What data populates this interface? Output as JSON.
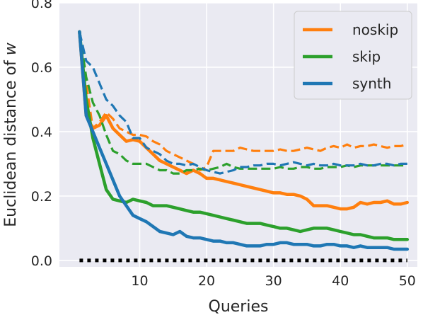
{
  "chart_data": {
    "type": "line",
    "xlabel": "Queries",
    "ylabel": "Euclidean distance of ",
    "ylabel_symbol": "w",
    "xlim": [
      -2,
      51.5
    ],
    "ylim": [
      -0.02,
      0.8
    ],
    "xticks": [
      10,
      20,
      30,
      40,
      50
    ],
    "yticks": [
      0.0,
      0.2,
      0.4,
      0.6,
      0.8
    ],
    "xtick_labels": [
      "10",
      "20",
      "30",
      "40",
      "50"
    ],
    "ytick_labels": [
      "0.0",
      "0.2",
      "0.4",
      "0.6",
      "0.8"
    ],
    "grid": true,
    "background": "#eaeaf2",
    "legend_position": "top-right",
    "x": [
      1,
      2,
      3,
      4,
      5,
      6,
      7,
      8,
      9,
      10,
      11,
      12,
      13,
      14,
      15,
      16,
      17,
      18,
      19,
      20,
      21,
      22,
      23,
      24,
      25,
      26,
      27,
      28,
      29,
      30,
      31,
      32,
      33,
      34,
      35,
      36,
      37,
      38,
      39,
      40,
      41,
      42,
      43,
      44,
      45,
      46,
      47,
      48,
      49,
      50
    ],
    "series": [
      {
        "name": "noskip",
        "color": "#ff7f0e",
        "style": "solid",
        "values": [
          0.71,
          0.45,
          0.41,
          0.42,
          0.45,
          0.41,
          0.39,
          0.37,
          0.375,
          0.37,
          0.35,
          0.33,
          0.31,
          0.3,
          0.29,
          0.28,
          0.27,
          0.28,
          0.27,
          0.255,
          0.255,
          0.25,
          0.245,
          0.24,
          0.235,
          0.23,
          0.225,
          0.22,
          0.215,
          0.21,
          0.21,
          0.205,
          0.205,
          0.2,
          0.19,
          0.17,
          0.17,
          0.17,
          0.165,
          0.16,
          0.16,
          0.165,
          0.18,
          0.175,
          0.18,
          0.18,
          0.185,
          0.175,
          0.175,
          0.18
        ]
      },
      {
        "name": "",
        "color": "#ff7f0e",
        "style": "dashed",
        "values": [
          0.71,
          0.55,
          0.41,
          0.43,
          0.46,
          0.44,
          0.41,
          0.4,
          0.39,
          0.39,
          0.385,
          0.37,
          0.36,
          0.34,
          0.33,
          0.32,
          0.31,
          0.3,
          0.28,
          0.29,
          0.34,
          0.34,
          0.34,
          0.34,
          0.35,
          0.345,
          0.34,
          0.34,
          0.34,
          0.34,
          0.345,
          0.34,
          0.34,
          0.345,
          0.35,
          0.345,
          0.34,
          0.35,
          0.355,
          0.35,
          0.36,
          0.35,
          0.355,
          0.355,
          0.36,
          0.355,
          0.35,
          0.355,
          0.355,
          0.36
        ]
      },
      {
        "name": "skip",
        "color": "#2ca02c",
        "style": "solid",
        "values": [
          0.71,
          0.5,
          0.38,
          0.3,
          0.22,
          0.19,
          0.185,
          0.18,
          0.19,
          0.185,
          0.18,
          0.17,
          0.17,
          0.17,
          0.165,
          0.16,
          0.155,
          0.15,
          0.15,
          0.145,
          0.14,
          0.135,
          0.13,
          0.125,
          0.12,
          0.115,
          0.115,
          0.115,
          0.11,
          0.105,
          0.1,
          0.1,
          0.095,
          0.09,
          0.095,
          0.1,
          0.1,
          0.1,
          0.095,
          0.09,
          0.085,
          0.08,
          0.08,
          0.075,
          0.07,
          0.07,
          0.07,
          0.065,
          0.065,
          0.065
        ]
      },
      {
        "name": "",
        "color": "#2ca02c",
        "style": "dashed",
        "values": [
          0.71,
          0.57,
          0.49,
          0.45,
          0.39,
          0.34,
          0.33,
          0.31,
          0.3,
          0.3,
          0.3,
          0.29,
          0.28,
          0.28,
          0.27,
          0.27,
          0.28,
          0.28,
          0.285,
          0.28,
          0.285,
          0.29,
          0.3,
          0.29,
          0.285,
          0.285,
          0.285,
          0.285,
          0.285,
          0.285,
          0.29,
          0.285,
          0.285,
          0.29,
          0.29,
          0.285,
          0.285,
          0.29,
          0.29,
          0.29,
          0.295,
          0.29,
          0.295,
          0.295,
          0.295,
          0.295,
          0.295,
          0.295,
          0.295,
          0.295
        ]
      },
      {
        "name": "synth",
        "color": "#1f77b4",
        "style": "solid",
        "values": [
          0.71,
          0.45,
          0.4,
          0.35,
          0.3,
          0.25,
          0.2,
          0.17,
          0.14,
          0.13,
          0.12,
          0.105,
          0.09,
          0.085,
          0.08,
          0.09,
          0.075,
          0.07,
          0.07,
          0.065,
          0.06,
          0.06,
          0.055,
          0.055,
          0.05,
          0.045,
          0.045,
          0.045,
          0.05,
          0.05,
          0.055,
          0.055,
          0.05,
          0.05,
          0.05,
          0.045,
          0.045,
          0.05,
          0.05,
          0.045,
          0.045,
          0.04,
          0.045,
          0.04,
          0.04,
          0.04,
          0.04,
          0.035,
          0.035,
          0.035
        ]
      },
      {
        "name": "",
        "color": "#1f77b4",
        "style": "dashed",
        "values": [
          0.71,
          0.62,
          0.6,
          0.55,
          0.5,
          0.48,
          0.45,
          0.43,
          0.38,
          0.38,
          0.35,
          0.34,
          0.33,
          0.31,
          0.3,
          0.3,
          0.295,
          0.3,
          0.29,
          0.28,
          0.275,
          0.27,
          0.275,
          0.28,
          0.29,
          0.29,
          0.295,
          0.295,
          0.3,
          0.3,
          0.295,
          0.3,
          0.305,
          0.3,
          0.295,
          0.3,
          0.295,
          0.295,
          0.3,
          0.295,
          0.295,
          0.295,
          0.3,
          0.295,
          0.295,
          0.3,
          0.3,
          0.295,
          0.3,
          0.3
        ]
      },
      {
        "name": "",
        "color": "#000000",
        "style": "dotted",
        "values": [
          0.0,
          0.0,
          0.0,
          0.0,
          0.0,
          0.0,
          0.0,
          0.0,
          0.0,
          0.0,
          0.0,
          0.0,
          0.0,
          0.0,
          0.0,
          0.0,
          0.0,
          0.0,
          0.0,
          0.0,
          0.0,
          0.0,
          0.0,
          0.0,
          0.0,
          0.0,
          0.0,
          0.0,
          0.0,
          0.0,
          0.0,
          0.0,
          0.0,
          0.0,
          0.0,
          0.0,
          0.0,
          0.0,
          0.0,
          0.0,
          0.0,
          0.0,
          0.0,
          0.0,
          0.0,
          0.0,
          0.0,
          0.0,
          0.0,
          0.0
        ]
      }
    ],
    "legend": [
      {
        "label": "noskip",
        "color": "#ff7f0e"
      },
      {
        "label": "skip",
        "color": "#2ca02c"
      },
      {
        "label": "synth",
        "color": "#1f77b4"
      }
    ]
  }
}
